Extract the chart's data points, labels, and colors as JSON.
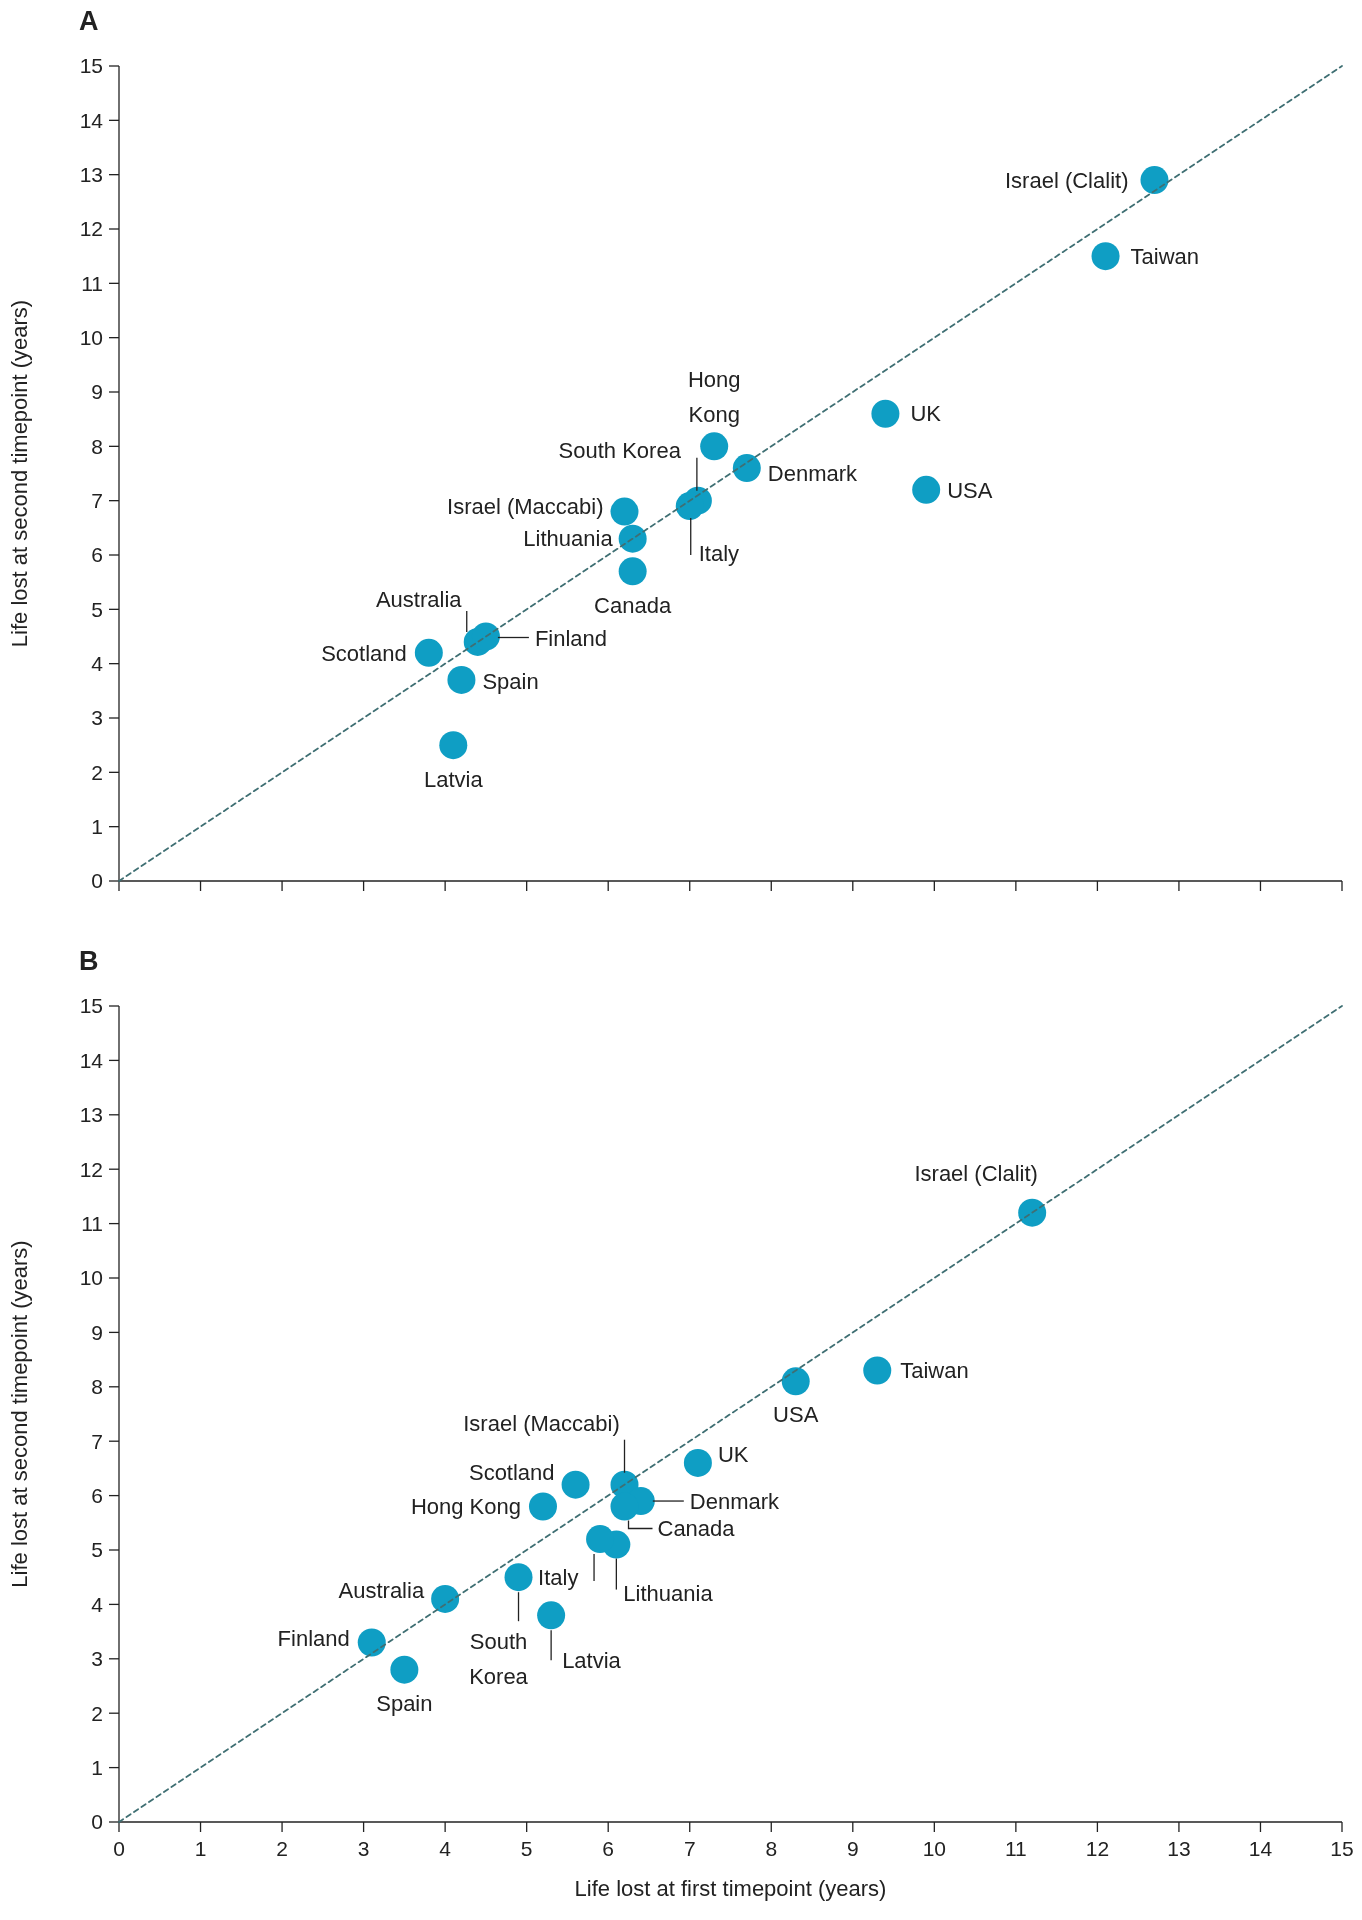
{
  "chart_data": [
    {
      "type": "scatter",
      "title": "A",
      "ylabel": "Life lost at second timepoint (years)",
      "xlim": [
        0,
        15
      ],
      "ylim": [
        0,
        15
      ],
      "xticks": [
        {
          "value": 0,
          "label": null
        },
        {
          "value": 1,
          "label": null
        },
        {
          "value": 2,
          "label": null
        },
        {
          "value": 3,
          "label": null
        },
        {
          "value": 4,
          "label": null
        },
        {
          "value": 5,
          "label": null
        },
        {
          "value": 6,
          "label": null
        },
        {
          "value": 7,
          "label": null
        },
        {
          "value": 8,
          "label": null
        },
        {
          "value": 9,
          "label": null
        },
        {
          "value": 10,
          "label": null
        },
        {
          "value": 11,
          "label": null
        },
        {
          "value": 12,
          "label": null
        },
        {
          "value": 13,
          "label": null
        },
        {
          "value": 14,
          "label": null
        },
        {
          "value": 15,
          "label": null
        }
      ],
      "yticks": [
        0,
        1,
        2,
        3,
        4,
        5,
        6,
        7,
        8,
        9,
        10,
        11,
        12,
        13,
        14,
        15
      ],
      "tick_labels": "y",
      "series": [
        {
          "type": "scatter",
          "color": "#0f9ec4",
          "marker": "circle",
          "x": [
            12.7,
            12.1,
            9.4,
            9.9,
            7.7,
            7.3,
            7.1,
            7.0,
            6.2,
            6.3,
            6.3,
            4.4,
            4.5,
            3.8,
            4.2,
            4.1
          ],
          "values": [
            12.9,
            11.5,
            8.6,
            7.2,
            7.6,
            8.0,
            7.0,
            6.9,
            6.8,
            6.3,
            5.7,
            4.4,
            4.5,
            4.2,
            3.7,
            2.5
          ]
        },
        {
          "type": "line",
          "color": "#3f6f73",
          "line_style": "dashed",
          "x": [
            0,
            15
          ],
          "values": [
            0,
            15
          ]
        }
      ],
      "annotations": [
        {
          "text": "Israel (Clalit)",
          "x": 12.7,
          "y": 12.9
        },
        {
          "text": "Taiwan",
          "x": 12.1,
          "y": 11.5
        },
        {
          "text": "UK",
          "x": 9.4,
          "y": 8.6
        },
        {
          "text": "USA",
          "x": 9.9,
          "y": 7.2
        },
        {
          "text": "Denmark",
          "x": 7.7,
          "y": 7.6
        },
        {
          "text": "Hong Kong",
          "x": 7.3,
          "y": 8.0
        },
        {
          "text": "South Korea",
          "x": 7.1,
          "y": 7.0
        },
        {
          "text": "Italy",
          "x": 7.0,
          "y": 6.9
        },
        {
          "text": "Israel (Maccabi)",
          "x": 6.2,
          "y": 6.8
        },
        {
          "text": "Lithuania",
          "x": 6.3,
          "y": 6.3
        },
        {
          "text": "Canada",
          "x": 6.3,
          "y": 5.7
        },
        {
          "text": "Australia",
          "x": 4.4,
          "y": 4.4
        },
        {
          "text": "Finland",
          "x": 4.5,
          "y": 4.5
        },
        {
          "text": "Scotland",
          "x": 3.8,
          "y": 4.2
        },
        {
          "text": "Spain",
          "x": 4.2,
          "y": 3.7
        },
        {
          "text": "Latvia",
          "x": 4.1,
          "y": 2.5
        }
      ]
    },
    {
      "type": "scatter",
      "title": "B",
      "xlabel": "Life lost at first timepoint (years)",
      "ylabel": "Life lost at second timepoint (years)",
      "xlim": [
        0,
        15
      ],
      "ylim": [
        0,
        15
      ],
      "xticks": [
        0,
        1,
        2,
        3,
        4,
        5,
        6,
        7,
        8,
        9,
        10,
        11,
        12,
        13,
        14,
        15
      ],
      "yticks": [
        0,
        1,
        2,
        3,
        4,
        5,
        6,
        7,
        8,
        9,
        10,
        11,
        12,
        13,
        14,
        15
      ],
      "series": [
        {
          "type": "scatter",
          "color": "#0f9ec4",
          "marker": "circle",
          "x": [
            11.2,
            9.3,
            8.3,
            7.1,
            6.2,
            5.6,
            5.2,
            6.4,
            6.2,
            6.1,
            5.9,
            4.9,
            5.3,
            4.0,
            3.1,
            3.5
          ],
          "values": [
            11.2,
            8.3,
            8.1,
            6.6,
            6.2,
            6.2,
            5.8,
            5.9,
            5.8,
            5.1,
            5.2,
            4.5,
            3.8,
            4.1,
            3.3,
            2.8
          ]
        },
        {
          "type": "line",
          "color": "#3f6f73",
          "line_style": "dashed",
          "x": [
            0,
            15
          ],
          "values": [
            0,
            15
          ]
        }
      ],
      "annotations": [
        {
          "text": "Israel (Clalit)",
          "x": 11.2,
          "y": 11.2
        },
        {
          "text": "Taiwan",
          "x": 9.3,
          "y": 8.3
        },
        {
          "text": "USA",
          "x": 8.3,
          "y": 8.1
        },
        {
          "text": "UK",
          "x": 7.1,
          "y": 6.6
        },
        {
          "text": "Israel (Maccabi)",
          "x": 6.2,
          "y": 6.2
        },
        {
          "text": "Scotland",
          "x": 5.6,
          "y": 6.2
        },
        {
          "text": "Hong Kong",
          "x": 5.2,
          "y": 5.8
        },
        {
          "text": "Denmark",
          "x": 6.4,
          "y": 5.9
        },
        {
          "text": "Canada",
          "x": 6.2,
          "y": 5.8
        },
        {
          "text": "Lithuania",
          "x": 6.1,
          "y": 5.1
        },
        {
          "text": "Italy",
          "x": 5.9,
          "y": 5.2
        },
        {
          "text": "South Korea",
          "x": 4.9,
          "y": 4.5
        },
        {
          "text": "Latvia",
          "x": 5.3,
          "y": 3.8
        },
        {
          "text": "Australia",
          "x": 4.0,
          "y": 4.1
        },
        {
          "text": "Finland",
          "x": 3.1,
          "y": 3.3
        },
        {
          "text": "Spain",
          "x": 3.5,
          "y": 2.8
        }
      ]
    }
  ]
}
